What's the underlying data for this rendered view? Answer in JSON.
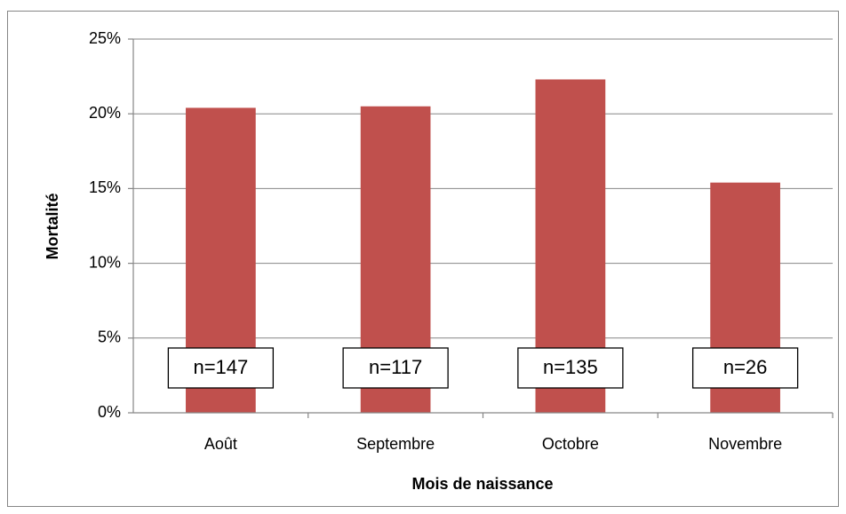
{
  "chart_data": {
    "type": "bar",
    "xlabel": "Mois de naissance",
    "ylabel": "Mortalité",
    "categories": [
      "Août",
      "Septembre",
      "Octobre",
      "Novembre"
    ],
    "values": [
      20.4,
      20.5,
      22.3,
      15.4
    ],
    "annotations": [
      "n=147",
      "n=117",
      "n=135",
      "n=26"
    ],
    "color": "#c0504d",
    "ylim": [
      0,
      25
    ],
    "yticks": [
      {
        "value": 0,
        "label": "0%"
      },
      {
        "value": 5,
        "label": "5%"
      },
      {
        "value": 10,
        "label": "10%"
      },
      {
        "value": 15,
        "label": "15%"
      },
      {
        "value": 20,
        "label": "20%"
      },
      {
        "value": 25,
        "label": "25%"
      }
    ],
    "grid": true
  }
}
